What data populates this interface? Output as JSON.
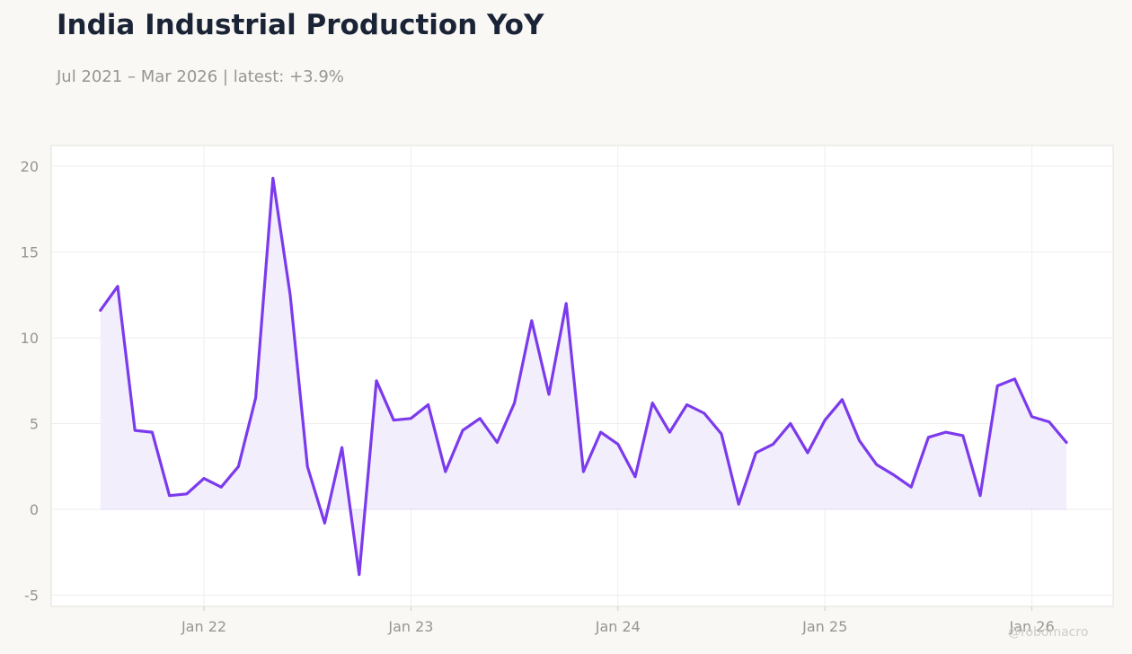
{
  "header": {
    "title": "India Industrial Production YoY",
    "subtitle": "Jul 2021 – Mar 2026 | latest: +3.9%"
  },
  "watermark": "@robomacro",
  "colors": {
    "line": "#7c3aed",
    "fill": "#f1ecfc",
    "background": "#f9f8f5",
    "plot_background": "#ffffff",
    "grid": "#efeeec",
    "axis_text": "#999590"
  },
  "chart_data": {
    "type": "area",
    "title": "India Industrial Production YoY",
    "subtitle": "Jul 2021 – Mar 2026 | latest: +3.9%",
    "xlabel": "",
    "ylabel": "",
    "ylim": [
      -5.5,
      21
    ],
    "grid": true,
    "legend": "none",
    "x_ticks": [
      {
        "label": "Jan 22",
        "date": "2022-01"
      },
      {
        "label": "Jan 23",
        "date": "2023-01"
      },
      {
        "label": "Jan 24",
        "date": "2024-01"
      },
      {
        "label": "Jan 25",
        "date": "2025-01"
      },
      {
        "label": "Jan 26",
        "date": "2026-01"
      }
    ],
    "y_ticks": [
      {
        "label": "-5",
        "value": -5
      },
      {
        "label": "0",
        "value": 0
      },
      {
        "label": "5",
        "value": 5
      },
      {
        "label": "10",
        "value": 10
      },
      {
        "label": "15",
        "value": 15
      },
      {
        "label": "20",
        "value": 20
      }
    ],
    "x": [
      "2021-07",
      "2021-08",
      "2021-09",
      "2021-10",
      "2021-11",
      "2021-12",
      "2022-01",
      "2022-02",
      "2022-03",
      "2022-04",
      "2022-05",
      "2022-06",
      "2022-07",
      "2022-08",
      "2022-09",
      "2022-10",
      "2022-11",
      "2022-12",
      "2023-01",
      "2023-02",
      "2023-03",
      "2023-04",
      "2023-05",
      "2023-06",
      "2023-07",
      "2023-08",
      "2023-09",
      "2023-10",
      "2023-11",
      "2023-12",
      "2024-01",
      "2024-02",
      "2024-03",
      "2024-04",
      "2024-05",
      "2024-06",
      "2024-07",
      "2024-08",
      "2024-09",
      "2024-10",
      "2024-11",
      "2024-12",
      "2025-01",
      "2025-02",
      "2025-03",
      "2025-04",
      "2025-05",
      "2025-06",
      "2025-07",
      "2025-08",
      "2025-09",
      "2025-10",
      "2025-11",
      "2025-12",
      "2026-01",
      "2026-02",
      "2026-03"
    ],
    "values": [
      11.6,
      13.0,
      4.6,
      4.5,
      0.8,
      0.9,
      1.8,
      1.3,
      2.5,
      6.5,
      19.3,
      12.5,
      2.5,
      -0.8,
      3.6,
      -3.8,
      7.5,
      5.2,
      5.3,
      6.1,
      2.2,
      4.6,
      5.3,
      3.9,
      6.2,
      11.0,
      6.7,
      12.0,
      2.2,
      4.5,
      3.8,
      1.9,
      6.2,
      4.5,
      6.1,
      5.6,
      4.4,
      0.3,
      3.3,
      3.8,
      5.0,
      3.3,
      5.2,
      6.4,
      4.0,
      2.6,
      2.0,
      1.3,
      4.2,
      4.5,
      4.3,
      0.8,
      7.2,
      7.6,
      5.4,
      5.1,
      3.9
    ]
  }
}
